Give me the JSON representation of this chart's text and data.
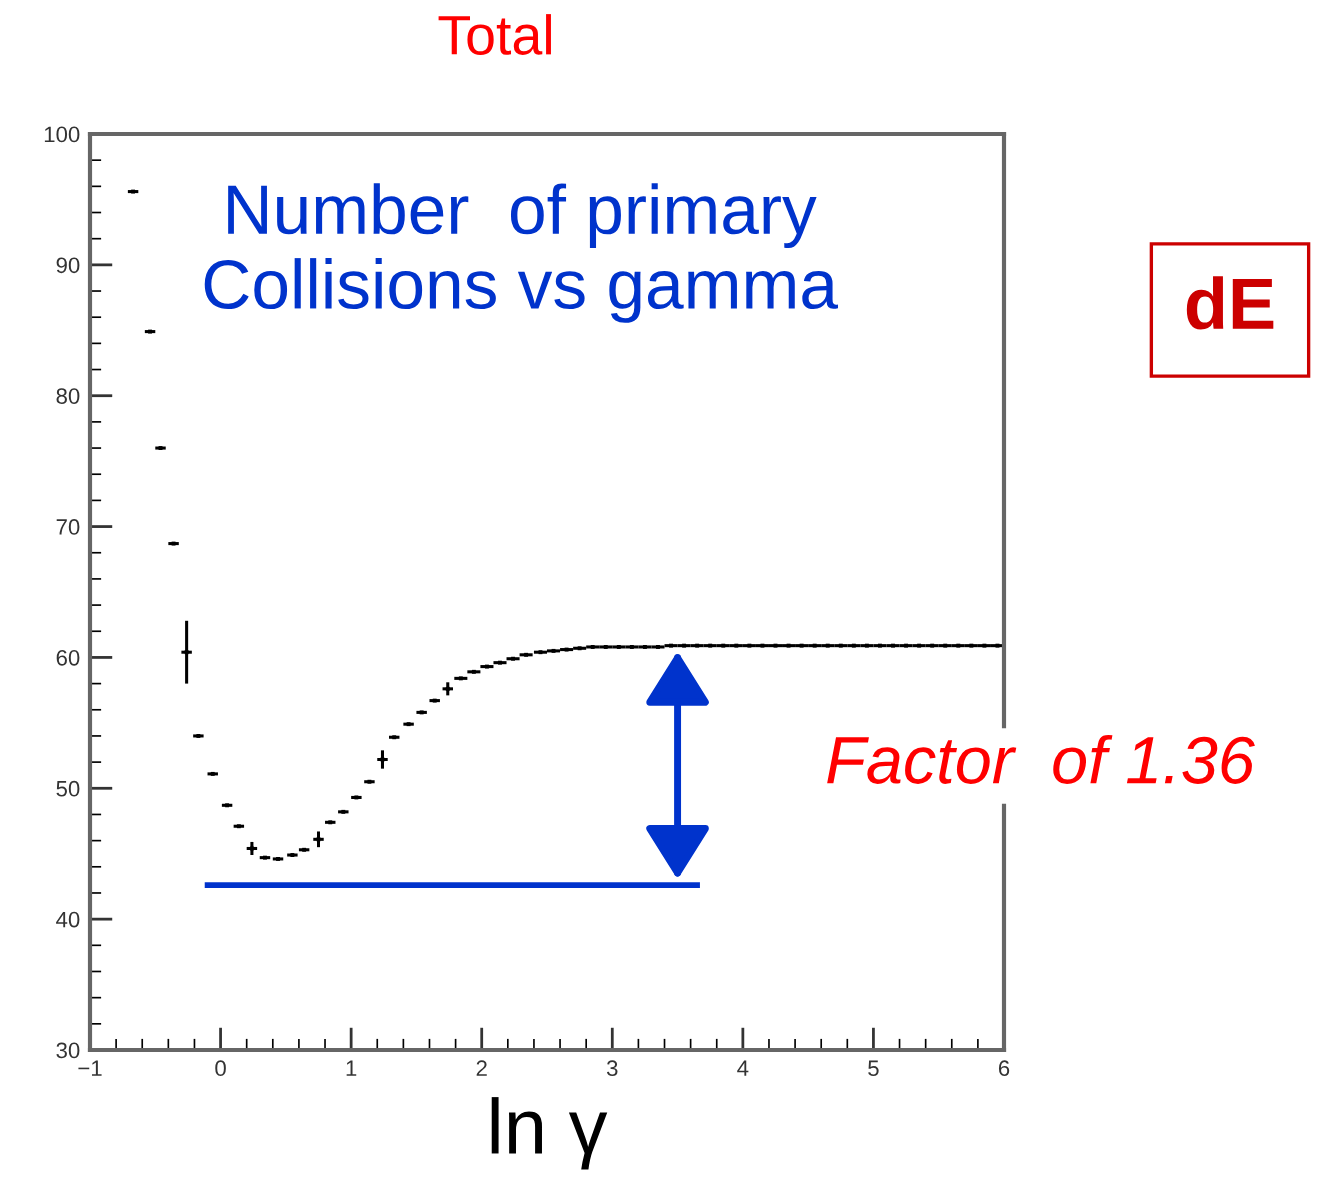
{
  "chart_data": {
    "type": "scatter",
    "title": "Total",
    "xlabel": "ln γ",
    "xlim": [
      -1,
      6
    ],
    "ylim": [
      30,
      100
    ],
    "xticks": [
      -1,
      0,
      1,
      2,
      3,
      4,
      5,
      6
    ],
    "yticks": [
      30,
      40,
      50,
      60,
      70,
      80,
      90,
      100
    ],
    "grid": false,
    "annotations": [
      "Number  of primary\nCollisions vs gamma",
      "dE",
      {
        "text": "Factor  of 1.36",
        "x": 3.5,
        "y": 60.9
      }
    ],
    "series": [
      {
        "color": "#000000",
        "marker": "square",
        "x": [
          -0.67,
          -0.54,
          -0.46,
          -0.36,
          -0.26,
          -0.17,
          -0.06,
          0.05,
          0.14,
          0.24,
          0.34,
          0.44,
          0.55,
          0.64,
          0.75,
          0.84,
          0.94,
          1.04,
          1.14,
          1.24,
          1.33,
          1.44,
          1.54,
          1.64,
          1.74,
          1.84,
          1.94,
          2.04,
          2.14,
          2.24,
          2.34,
          2.45,
          2.55,
          2.65,
          2.75,
          2.85,
          2.95,
          3.05,
          3.15,
          3.25,
          3.35,
          3.45,
          3.55,
          3.65,
          3.75,
          3.85,
          3.95,
          4.05,
          4.15,
          4.25,
          4.35,
          4.45,
          4.55,
          4.65,
          4.75,
          4.85,
          4.95,
          5.05,
          5.15,
          5.25,
          5.35,
          5.45,
          5.55,
          5.65,
          5.75,
          5.85,
          5.95
        ],
        "values": [
          95.6,
          84.9,
          76.0,
          68.7,
          60.4,
          54.0,
          51.1,
          48.7,
          47.1,
          45.4,
          44.7,
          44.6,
          44.9,
          45.3,
          46.1,
          47.4,
          48.2,
          49.3,
          50.5,
          52.2,
          53.9,
          54.9,
          55.8,
          56.7,
          57.6,
          58.4,
          58.9,
          59.3,
          59.6,
          59.9,
          60.2,
          60.4,
          60.5,
          60.6,
          60.7,
          60.8,
          60.8,
          60.8,
          60.8,
          60.8,
          60.8,
          60.9,
          60.9,
          60.9,
          60.9,
          60.9,
          60.9,
          60.9,
          60.9,
          60.9,
          60.9,
          60.9,
          60.9,
          60.9,
          60.9,
          60.9,
          60.9,
          60.9,
          60.9,
          60.9,
          60.9,
          60.9,
          60.9,
          60.9,
          60.9,
          60.9,
          60.9
        ],
        "errors": [
          null,
          null,
          null,
          null,
          2.4,
          null,
          null,
          null,
          null,
          0.5,
          null,
          null,
          null,
          null,
          0.6,
          null,
          null,
          null,
          null,
          0.7,
          null,
          null,
          null,
          null,
          0.5,
          null,
          null,
          null,
          null,
          null,
          null,
          null,
          null,
          null,
          null,
          null,
          null,
          null,
          null,
          null,
          null,
          null,
          null,
          null,
          null,
          null,
          null,
          null,
          null,
          null,
          null,
          null,
          null,
          null,
          null,
          null,
          null,
          null,
          null,
          null,
          null,
          null,
          null,
          null,
          null,
          null,
          null
        ],
        "xerrors": [
          0.04,
          0.04,
          0.04,
          0.04,
          0.04,
          0.04,
          0.04,
          0.04,
          0.04,
          0.04,
          0.04,
          0.04,
          0.04,
          0.04,
          0.04,
          0.04,
          0.04,
          0.04,
          0.04,
          0.04,
          0.04,
          0.04,
          0.04,
          0.04,
          0.04,
          0.05,
          0.05,
          0.05,
          0.05,
          0.05,
          0.05,
          0.05,
          0.05,
          0.05,
          0.05,
          0.05,
          0.05,
          0.05,
          0.05,
          0.05,
          0.05,
          0.05,
          0.05,
          0.05,
          0.05,
          0.05,
          0.05,
          0.05,
          0.05,
          0.05,
          0.05,
          0.05,
          0.05,
          0.05,
          0.05,
          0.05,
          0.05,
          0.05,
          0.05,
          0.05,
          0.05,
          0.05,
          0.05,
          0.05,
          0.05,
          0.05,
          0.05
        ]
      },
      {
        "type": "line",
        "color": "#0033cc",
        "x": [
          -0.1,
          3.65
        ],
        "values": [
          42.6,
          42.6
        ]
      }
    ]
  }
}
